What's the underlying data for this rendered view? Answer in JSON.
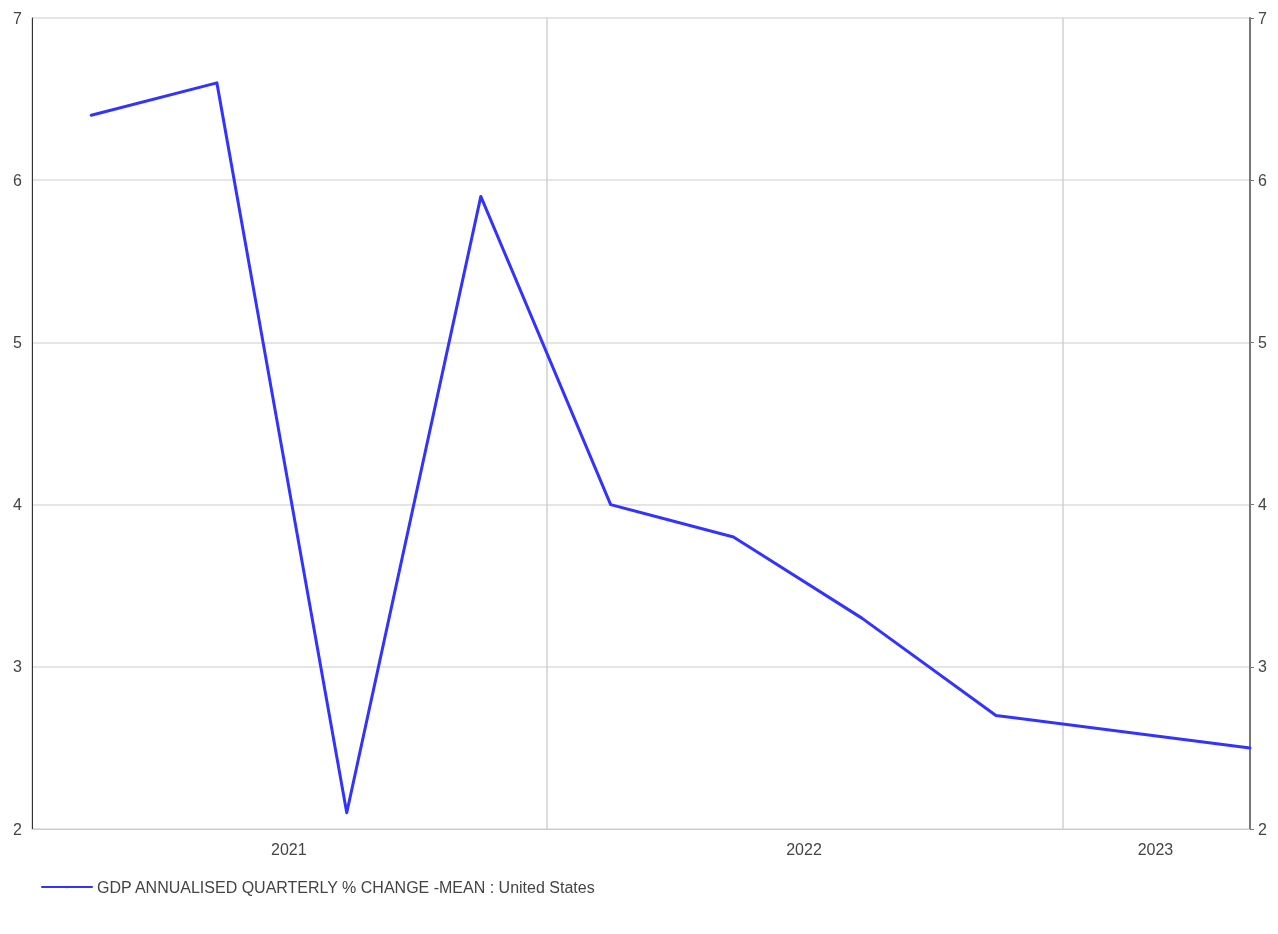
{
  "chart_data": {
    "type": "line",
    "x": [
      "2021-02-12",
      "2021-05-12",
      "2021-08-12",
      "2021-11-15",
      "2022-02-15",
      "2022-05-13",
      "2022-08-12",
      "2022-11-15",
      "2023-05-14"
    ],
    "series": [
      {
        "name": "GDP ANNUALISED QUARTERLY % CHANGE -MEAN : United States",
        "color": "#3333ff",
        "values": [
          6.4,
          6.6,
          2.1,
          5.9,
          4.0,
          3.8,
          3.3,
          2.7,
          2.5
        ]
      }
    ],
    "xlim": [
      "2021-01-01",
      "2023-05-14"
    ],
    "xticks": [
      {
        "value": "2021-01-01",
        "label": null
      },
      {
        "value": "2021-07-02",
        "label": "2021"
      },
      {
        "value": "2022-01-01",
        "label": null
      },
      {
        "value": "2022-07-02",
        "label": "2022"
      },
      {
        "value": "2023-01-01",
        "label": null
      },
      {
        "value": "2023-03-08",
        "label": "2023"
      }
    ],
    "ylim": [
      2,
      7
    ],
    "yticks": [
      2,
      3,
      4,
      5,
      6,
      7
    ],
    "y2lim": [
      2,
      7
    ],
    "y2ticks": [
      2,
      3,
      4,
      5,
      6,
      7
    ],
    "grid": true,
    "legend": "bottom left",
    "marker": "none",
    "line_style": "solid"
  }
}
